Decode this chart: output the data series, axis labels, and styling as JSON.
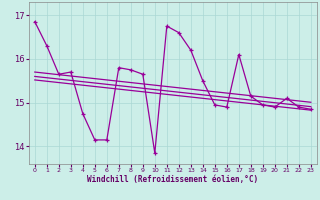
{
  "xlabel": "Windchill (Refroidissement éolien,°C)",
  "background_color": "#cceee8",
  "grid_color": "#aad8d4",
  "line_color": "#990099",
  "xlim": [
    -0.5,
    23.5
  ],
  "ylim": [
    13.6,
    17.3
  ],
  "yticks": [
    14,
    15,
    16,
    17
  ],
  "xticks": [
    0,
    1,
    2,
    3,
    4,
    5,
    6,
    7,
    8,
    9,
    10,
    11,
    12,
    13,
    14,
    15,
    16,
    17,
    18,
    19,
    20,
    21,
    22,
    23
  ],
  "series": {
    "main": [
      16.85,
      16.3,
      15.65,
      15.7,
      14.75,
      14.15,
      14.15,
      15.8,
      15.75,
      15.65,
      13.85,
      16.75,
      16.6,
      16.2,
      15.5,
      14.95,
      14.9,
      16.1,
      15.15,
      14.95,
      14.9,
      15.1,
      14.9,
      14.85
    ],
    "trend1": [
      15.6,
      15.57,
      15.54,
      15.51,
      15.48,
      15.45,
      15.42,
      15.39,
      15.36,
      15.33,
      15.3,
      15.27,
      15.24,
      15.21,
      15.18,
      15.15,
      15.12,
      15.09,
      15.06,
      15.03,
      15.0,
      14.97,
      14.94,
      14.91
    ],
    "trend2": [
      15.7,
      15.67,
      15.64,
      15.61,
      15.58,
      15.55,
      15.52,
      15.49,
      15.46,
      15.43,
      15.4,
      15.37,
      15.34,
      15.31,
      15.28,
      15.25,
      15.22,
      15.19,
      15.16,
      15.13,
      15.1,
      15.07,
      15.04,
      15.01
    ],
    "trend3": [
      15.52,
      15.49,
      15.46,
      15.43,
      15.4,
      15.37,
      15.34,
      15.31,
      15.28,
      15.25,
      15.22,
      15.19,
      15.16,
      15.13,
      15.1,
      15.07,
      15.04,
      15.01,
      14.98,
      14.95,
      14.92,
      14.89,
      14.86,
      14.83
    ]
  }
}
